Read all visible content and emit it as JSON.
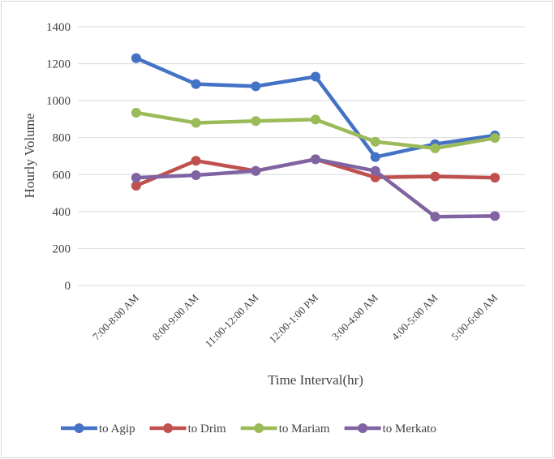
{
  "chart_data": {
    "type": "line",
    "x_label": "Time Interval(hr)",
    "y_label": "Hourly Volume",
    "categories": [
      "7:00-8:00 AM",
      "8:00-9:00 AM",
      "11:00-12:00 AM",
      "12:00-1:00 PM",
      "3:00-4:00 AM",
      "4:00-5:00 AM",
      "5:00-6:00 AM"
    ],
    "series": [
      {
        "name": "to Agip",
        "color": "#4472c4",
        "values": [
          1230,
          1090,
          1078,
          1130,
          695,
          765,
          812
        ]
      },
      {
        "name": "to Drim",
        "color": "#c0504d",
        "values": [
          540,
          675,
          620,
          683,
          585,
          590,
          583
        ]
      },
      {
        "name": "to Mariam",
        "color": "#9bbb59",
        "values": [
          935,
          880,
          890,
          898,
          778,
          742,
          798
        ]
      },
      {
        "name": "to Merkato",
        "color": "#8064a2",
        "values": [
          583,
          597,
          620,
          683,
          620,
          372,
          376
        ]
      }
    ],
    "ylim": [
      0,
      1400
    ],
    "yticks": [
      0,
      200,
      400,
      600,
      800,
      1000,
      1200,
      1400
    ],
    "grid": true,
    "legend": "bottom"
  }
}
